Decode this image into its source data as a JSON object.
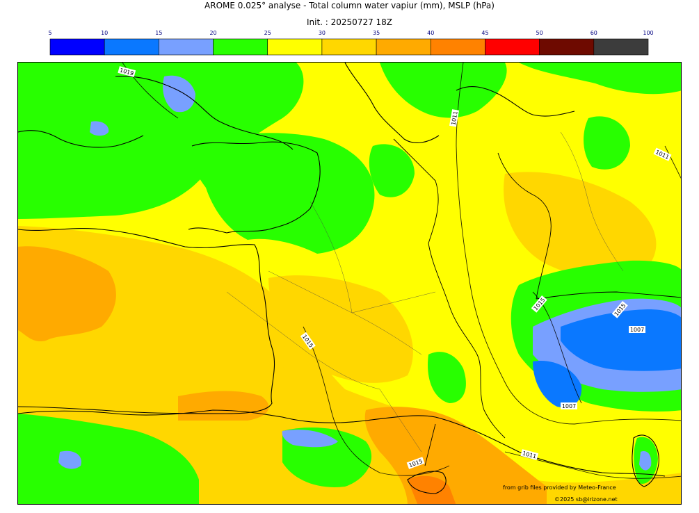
{
  "title": "AROME 0.025° analyse - Total column water vapiur (mm), MSLP (hPa)",
  "init": "Init. : 20250727 18Z",
  "colorbar": {
    "ticks": [
      "5",
      "10",
      "15",
      "20",
      "25",
      "30",
      "35",
      "40",
      "45",
      "50",
      "60",
      "100"
    ],
    "colors": [
      "#0000ff",
      "#0a78ff",
      "#78a0ff",
      "#28ff00",
      "#ffff00",
      "#ffd700",
      "#ffaa00",
      "#ff8200",
      "#ff0000",
      "#6e0a00",
      "#3c3c3c"
    ],
    "tick_color": "#000080"
  },
  "map": {
    "projection_note": "",
    "isobar_labels": [
      "1019",
      "1011",
      "1011",
      "1015",
      "1015",
      "1015",
      "1007",
      "1007",
      "1011",
      "1015"
    ]
  },
  "credits": {
    "line1": "from grib files provided by Meteo-France",
    "line2": "©2025 sb@irizone.net"
  }
}
